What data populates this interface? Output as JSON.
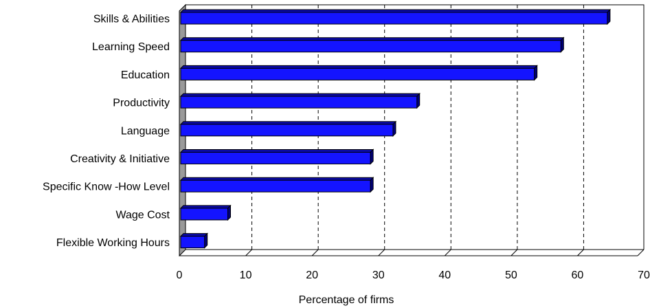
{
  "chart_data": {
    "type": "bar",
    "orientation": "horizontal",
    "style": "3d",
    "categories": [
      "Skills & Abilities",
      "Learning Speed",
      "Education",
      "Productivity",
      "Language",
      "Creativity & Initiative",
      "Specific Know -How Level",
      "Wage Cost",
      "Flexible Working Hours"
    ],
    "values": [
      64.5,
      57.5,
      53.5,
      35.8,
      32.2,
      28.8,
      28.8,
      7.3,
      3.8
    ],
    "xlabel": "Percentage of firms",
    "ylabel": "",
    "xlim": [
      0,
      70
    ],
    "xticks": [
      "0",
      "10",
      "20",
      "30",
      "40",
      "50",
      "60",
      "70"
    ],
    "grid": "vertical-dashed",
    "legend": "none",
    "colors": {
      "bar_front": "#1414ff",
      "bar_top": "#0a0aa8",
      "bar_side": "#000078",
      "bar_outline": "#000000",
      "wall": "#9a9a9a",
      "grid": "#000000"
    }
  }
}
